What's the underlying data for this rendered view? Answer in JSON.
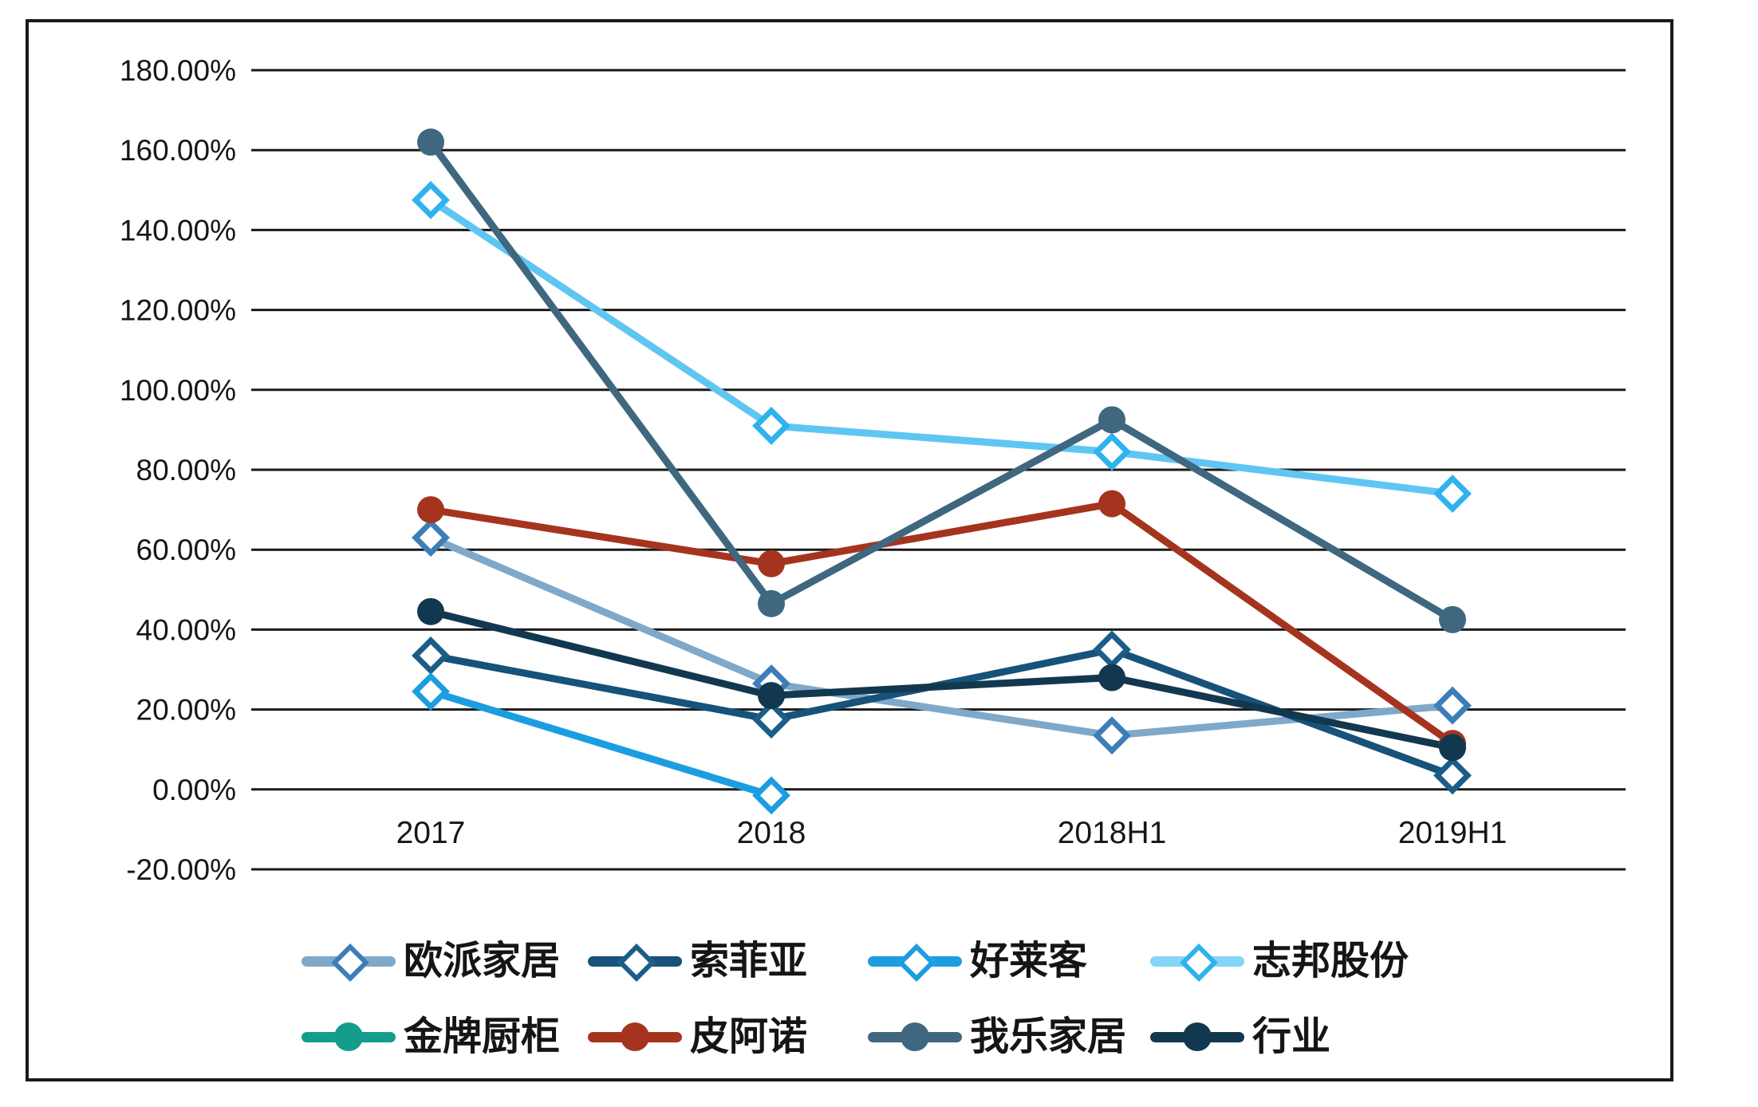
{
  "figure": {
    "background": "#ffffff",
    "frame_color": "#1a1a1a",
    "axis_text_color": "#161616"
  },
  "chart_data": {
    "type": "line",
    "title": "",
    "categories": [
      "2017",
      "2018",
      "2018H1",
      "2019H1"
    ],
    "y_axis": {
      "min": -20,
      "max": 180,
      "step": 20,
      "format": "percent",
      "tick_labels": [
        "180.00%",
        "160.00%",
        "140.00%",
        "120.00%",
        "100.00%",
        "80.00%",
        "60.00%",
        "40.00%",
        "20.00%",
        "0.00%",
        "-20.00%"
      ]
    },
    "grid": true,
    "legend_position": "bottom",
    "series": [
      {
        "name": "欧派家居",
        "slug": "oupai",
        "marker": "diamond",
        "color": "#7FA8C9",
        "marker_color": "#3D7EB8",
        "legend_color": "#7FA8C9",
        "values": [
          63,
          26.5,
          13.5,
          21
        ]
      },
      {
        "name": "索菲亚",
        "slug": "suofeiya",
        "marker": "diamond",
        "color": "#16527A",
        "marker_color": "#1A5E88",
        "legend_color": "#16527A",
        "values": [
          33.5,
          17.5,
          35,
          3.5
        ]
      },
      {
        "name": "好莱客",
        "slug": "holike",
        "marker": "diamond",
        "color": "#1C9DE0",
        "marker_color": "#1C9DE0",
        "legend_color": "#1C9DE0",
        "values": [
          24.5,
          -1.5,
          null,
          null
        ]
      },
      {
        "name": "志邦股份",
        "slug": "zbom",
        "marker": "diamond",
        "color": "#5FC6F3",
        "marker_color": "#2FB2EF",
        "legend_color": "#86D4F7",
        "values": [
          147.5,
          91,
          84.5,
          74
        ]
      },
      {
        "name": "金牌厨柜",
        "slug": "goldenhome",
        "marker": "circle",
        "color": "#149C8D",
        "marker_color": "#149C8D",
        "legend_color": "#149C8D",
        "values": [
          null,
          null,
          null,
          null
        ]
      },
      {
        "name": "皮阿诺",
        "slug": "piano",
        "marker": "circle",
        "color": "#A5341F",
        "marker_color": "#A5341F",
        "legend_color": "#A5341F",
        "values": [
          70,
          56.5,
          71.5,
          11.5
        ]
      },
      {
        "name": "我乐家居",
        "slug": "wole",
        "marker": "circle",
        "color": "#3F677F",
        "marker_color": "#3F677F",
        "legend_color": "#3F677F",
        "values": [
          162,
          46.5,
          92.5,
          42.5
        ]
      },
      {
        "name": "行业",
        "slug": "industry",
        "marker": "circle",
        "color": "#12384F",
        "marker_color": "#12384F",
        "legend_color": "#12384F",
        "values": [
          44.5,
          23.5,
          28,
          10.5
        ]
      }
    ],
    "legend_rows": [
      [
        "oupai",
        "suofeiya",
        "holike",
        "zbom"
      ],
      [
        "goldenhome",
        "piano",
        "wole",
        "industry"
      ]
    ]
  }
}
